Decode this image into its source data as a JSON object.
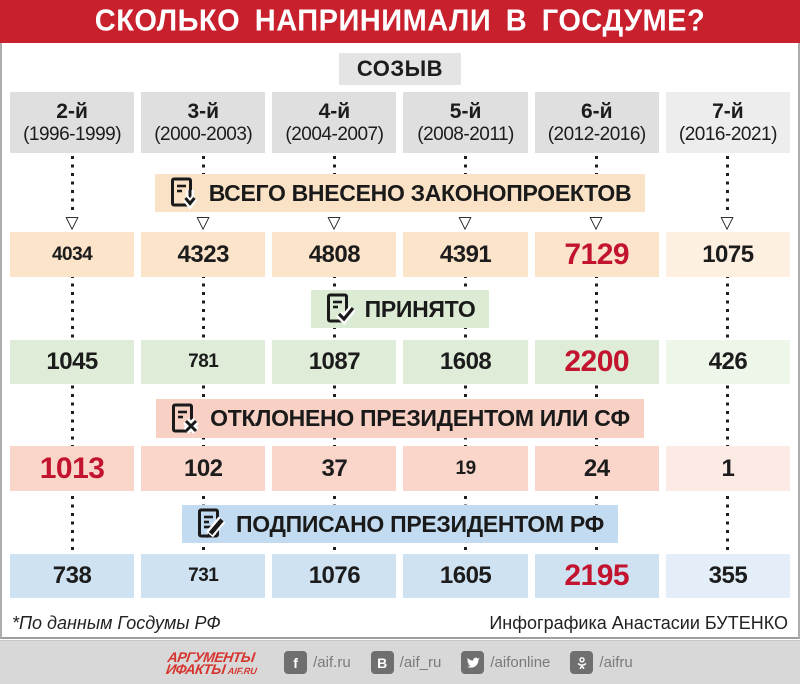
{
  "title": "СКОЛЬКО НАПРИНИМАЛИ В ГОСДУМЕ?",
  "convocation_label": "СОЗЫВ",
  "columns": [
    {
      "ordinal": "2-й",
      "years": "(1996-1999)"
    },
    {
      "ordinal": "3-й",
      "years": "(2000-2003)"
    },
    {
      "ordinal": "4-й",
      "years": "(2004-2007)"
    },
    {
      "ordinal": "5-й",
      "years": "(2008-2011)"
    },
    {
      "ordinal": "6-й",
      "years": "(2012-2016)"
    },
    {
      "ordinal": "7-й",
      "years": "(2016-2021)"
    }
  ],
  "sections": [
    {
      "label": "ВСЕГО ВНЕСЕНО ЗАКОНОПРОЕКТОВ",
      "icon": "document-arrow-down-icon",
      "band_color": "#FAE2C6",
      "cell_color": "#FBE4C9",
      "cell_color_last": "#FDF0E1",
      "values": [
        {
          "text": "4034",
          "style": "small"
        },
        {
          "text": "4323",
          "style": "normal"
        },
        {
          "text": "4808",
          "style": "normal"
        },
        {
          "text": "4391",
          "style": "normal"
        },
        {
          "text": "7129",
          "style": "highlight"
        },
        {
          "text": "1075",
          "style": "normal"
        }
      ]
    },
    {
      "label": "ПРИНЯТО",
      "icon": "document-check-icon",
      "band_color": "#DCEBD4",
      "cell_color": "#DFEDD8",
      "cell_color_last": "#EEF5E9",
      "values": [
        {
          "text": "1045",
          "style": "normal"
        },
        {
          "text": "781",
          "style": "small"
        },
        {
          "text": "1087",
          "style": "normal"
        },
        {
          "text": "1608",
          "style": "normal"
        },
        {
          "text": "2200",
          "style": "highlight"
        },
        {
          "text": "426",
          "style": "normal"
        }
      ]
    },
    {
      "label": "ОТКЛОНЕНО ПРЕЗИДЕНТОМ ИЛИ СФ",
      "icon": "document-cross-icon",
      "band_color": "#F8D0C4",
      "cell_color": "#F9D5CA",
      "cell_color_last": "#FCEAE4",
      "values": [
        {
          "text": "1013",
          "style": "highlight"
        },
        {
          "text": "102",
          "style": "normal"
        },
        {
          "text": "37",
          "style": "normal"
        },
        {
          "text": "19",
          "style": "small"
        },
        {
          "text": "24",
          "style": "normal"
        },
        {
          "text": "1",
          "style": "normal"
        }
      ]
    },
    {
      "label": "ПОДПИСАНО ПРЕЗИДЕНТОМ РФ",
      "icon": "document-pen-icon",
      "band_color": "#C3DBF0",
      "cell_color": "#CFE2F2",
      "cell_color_last": "#E3EEF8",
      "values": [
        {
          "text": "738",
          "style": "normal"
        },
        {
          "text": "731",
          "style": "small"
        },
        {
          "text": "1076",
          "style": "normal"
        },
        {
          "text": "1605",
          "style": "normal"
        },
        {
          "text": "2195",
          "style": "highlight"
        },
        {
          "text": "355",
          "style": "normal"
        }
      ]
    }
  ],
  "footer": {
    "source_note": "*По данным Госдумы РФ",
    "credit": "Инфографика Анастасии БУТЕНКО"
  },
  "bottom_bar": {
    "logo": {
      "line1": "АРГУМЕНТЫ",
      "line2": "ИФАКТЫ",
      "suffix": "AIF.RU"
    },
    "social": [
      {
        "icon": "facebook-icon",
        "glyph": "f",
        "handle": "/aif.ru"
      },
      {
        "icon": "vk-icon",
        "glyph": "В",
        "handle": "/aif_ru"
      },
      {
        "icon": "twitter-icon",
        "glyph": "",
        "handle": "/aifonline"
      },
      {
        "icon": "odnoklassniki-icon",
        "glyph": "",
        "handle": "/aifru"
      }
    ]
  },
  "colors": {
    "header_bg": "#C9202E",
    "header_text": "#FFFFFF",
    "highlight_number": "#C3142F",
    "column_header_bg": "#DFDFDF",
    "column_header_bg_last": "#EDEDED",
    "convocation_bg": "#E4E4E4",
    "bottom_bar_bg": "#D8D8D8",
    "logo_red": "#D6352F"
  },
  "chart_data": {
    "type": "table",
    "title": "СКОЛЬКО НАПРИНИМАЛИ В ГОСДУМЕ?",
    "categories": [
      "2-й (1996-1999)",
      "3-й (2000-2003)",
      "4-й (2004-2007)",
      "5-й (2008-2011)",
      "6-й (2012-2016)",
      "7-й (2016-2021)"
    ],
    "series": [
      {
        "name": "ВСЕГО ВНЕСЕНО ЗАКОНОПРОЕКТОВ",
        "values": [
          4034,
          4323,
          4808,
          4391,
          7129,
          1075
        ]
      },
      {
        "name": "ПРИНЯТО",
        "values": [
          1045,
          781,
          1087,
          1608,
          2200,
          426
        ]
      },
      {
        "name": "ОТКЛОНЕНО ПРЕЗИДЕНТОМ ИЛИ СФ",
        "values": [
          1013,
          102,
          37,
          19,
          24,
          1
        ]
      },
      {
        "name": "ПОДПИСАНО ПРЕЗИДЕНТОМ РФ",
        "values": [
          738,
          731,
          1076,
          1605,
          2195,
          355
        ]
      }
    ],
    "source": "*По данным Госдумы РФ",
    "credit": "Инфографика Анастасии БУТЕНКО"
  }
}
